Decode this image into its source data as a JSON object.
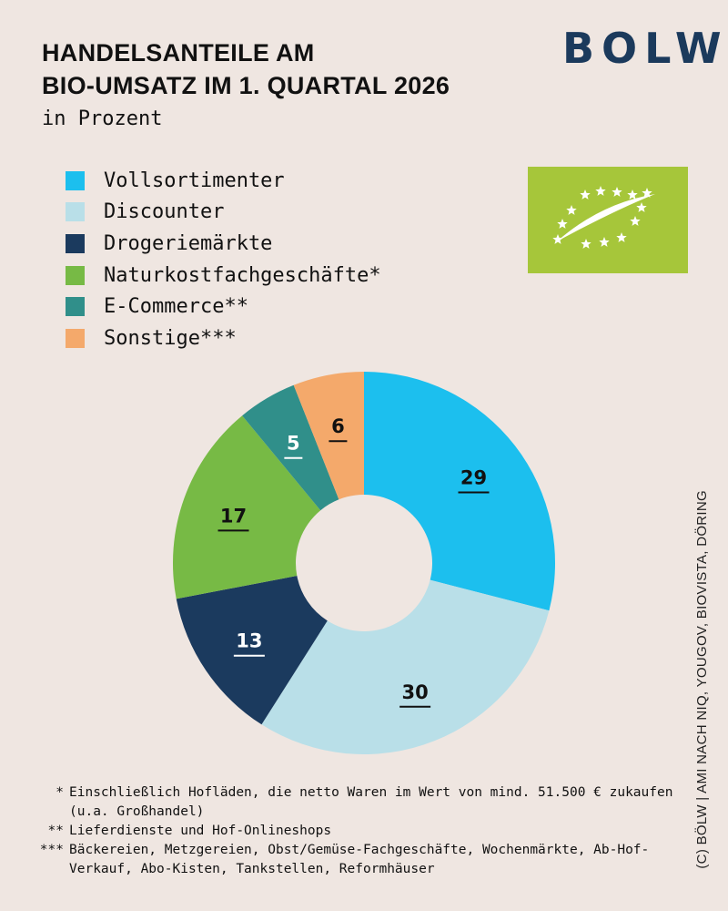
{
  "header": {
    "title_line1": "HANDELSANTEILE AM",
    "title_line2": "BIO-UMSATZ IM 1. QUARTAL 2026",
    "subtitle": "in Prozent",
    "logo_text": "BOLW"
  },
  "chart_data": {
    "type": "pie",
    "donut": true,
    "title": "HANDELSANTEILE AM BIO-UMSATZ IM 1. QUARTAL 2026",
    "subtitle": "in Prozent",
    "legend_position": "top-left",
    "categories": [
      "Vollsortimenter",
      "Discounter",
      "Drogeriemärkte",
      "Naturkostfachgeschäfte*",
      "E-Commerce**",
      "Sonstige***"
    ],
    "values": [
      29,
      30,
      13,
      17,
      5,
      6
    ],
    "colors": [
      "#1cbfee",
      "#b9dfe8",
      "#1b3a5e",
      "#77ba45",
      "#308f8a",
      "#f4a96b"
    ],
    "label_colors": [
      "#111111",
      "#111111",
      "#ffffff",
      "#111111",
      "#ffffff",
      "#111111"
    ]
  },
  "footnotes": [
    {
      "mark": "*",
      "text": "Einschließlich Hofläden, die netto Waren im Wert von mind. 51.500 € zukaufen (u.a. Großhandel)"
    },
    {
      "mark": "**",
      "text": "Lieferdienste und Hof-Onlineshops"
    },
    {
      "mark": "***",
      "text": "Bäckereien, Metzgereien, Obst/Gemüse-Fachgeschäfte, Wochenmärkte, Ab-Hof-Verkauf, Abo-Kisten, Tankstellen, Reformhäuser"
    }
  ],
  "source": "(C) BÖLW | AMI NACH NIQ, YOUGOV, BIOVISTA, DÖRING",
  "eu_organic_logo": {
    "background": "#a6c63a",
    "icon": "eu-organic-leaf-icon"
  }
}
